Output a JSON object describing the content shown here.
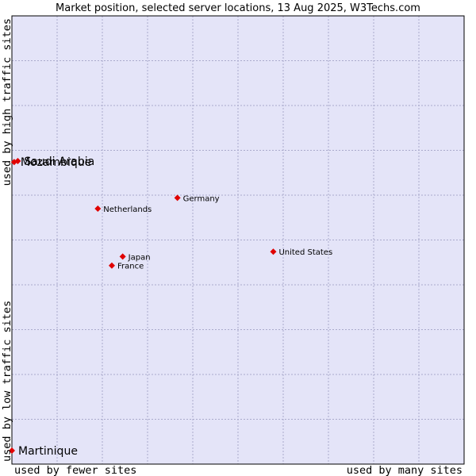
{
  "chart_data": {
    "type": "scatter",
    "title": "Market position, selected server locations, 13 Aug 2025, W3Techs.com",
    "xlabel_left": "used by fewer sites",
    "xlabel_right": "used by many sites",
    "ylabel_top": "used by high traffic sites",
    "ylabel_bottom": "used by low traffic sites",
    "xlim": [
      0,
      100
    ],
    "ylim": [
      0,
      100
    ],
    "grid": true,
    "colors": {
      "plot_bg": "#e4e4f8",
      "grid": "#aaaacc",
      "marker": "#e00000",
      "border": "#000000"
    },
    "points": [
      {
        "name": "Saudi Arabia",
        "x": 1.3,
        "y": 67.6,
        "label_size": "large"
      },
      {
        "name": "Mozambique",
        "x": 0.5,
        "y": 67.4,
        "label_size": "large"
      },
      {
        "name": "Germany",
        "x": 36.6,
        "y": 59.4,
        "label_size": "small"
      },
      {
        "name": "Netherlands",
        "x": 19.0,
        "y": 57.0,
        "label_size": "small"
      },
      {
        "name": "United States",
        "x": 57.8,
        "y": 47.4,
        "label_size": "small"
      },
      {
        "name": "Japan",
        "x": 24.5,
        "y": 46.3,
        "label_size": "small"
      },
      {
        "name": "France",
        "x": 22.1,
        "y": 44.3,
        "label_size": "small"
      },
      {
        "name": "Martinique",
        "x": 0.0,
        "y": 3.0,
        "label_size": "large"
      }
    ]
  }
}
